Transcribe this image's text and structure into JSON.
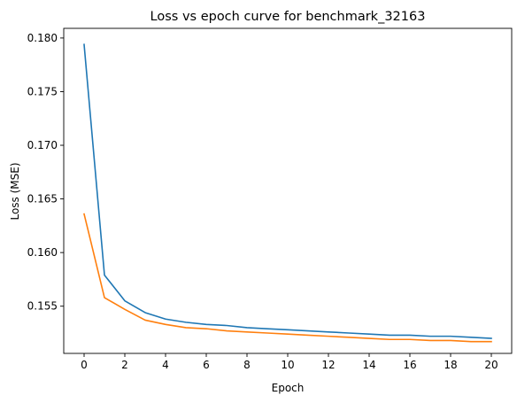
{
  "chart_data": {
    "type": "line",
    "title": "Loss vs epoch curve for benchmark_32163",
    "xlabel": "Epoch",
    "ylabel": "Loss (MSE)",
    "xlim": [
      -1,
      21
    ],
    "ylim": [
      0.1506,
      0.1809
    ],
    "xticks": [
      0,
      2,
      4,
      6,
      8,
      10,
      12,
      14,
      16,
      18,
      20
    ],
    "yticks": [
      0.155,
      0.16,
      0.165,
      0.17,
      0.175,
      0.18
    ],
    "ytick_labels": [
      "0.155",
      "0.160",
      "0.165",
      "0.170",
      "0.175",
      "0.180"
    ],
    "grid": false,
    "x": [
      0,
      1,
      2,
      3,
      4,
      5,
      6,
      7,
      8,
      9,
      10,
      11,
      12,
      13,
      14,
      15,
      16,
      17,
      18,
      19,
      20
    ],
    "series": [
      {
        "color": "#1f77b4",
        "values": [
          0.1794,
          0.1579,
          0.1555,
          0.1544,
          0.1538,
          0.1535,
          0.1533,
          0.1532,
          0.153,
          0.1529,
          0.1528,
          0.1527,
          0.1526,
          0.1525,
          0.1524,
          0.1523,
          0.1523,
          0.1522,
          0.1522,
          0.1521,
          0.152
        ]
      },
      {
        "color": "#ff7f0e",
        "values": [
          0.1636,
          0.1558,
          0.1547,
          0.1537,
          0.1533,
          0.153,
          0.1529,
          0.1527,
          0.1526,
          0.1525,
          0.1524,
          0.1523,
          0.1522,
          0.1521,
          0.152,
          0.1519,
          0.1519,
          0.1518,
          0.1518,
          0.1517,
          0.1517
        ]
      }
    ]
  }
}
